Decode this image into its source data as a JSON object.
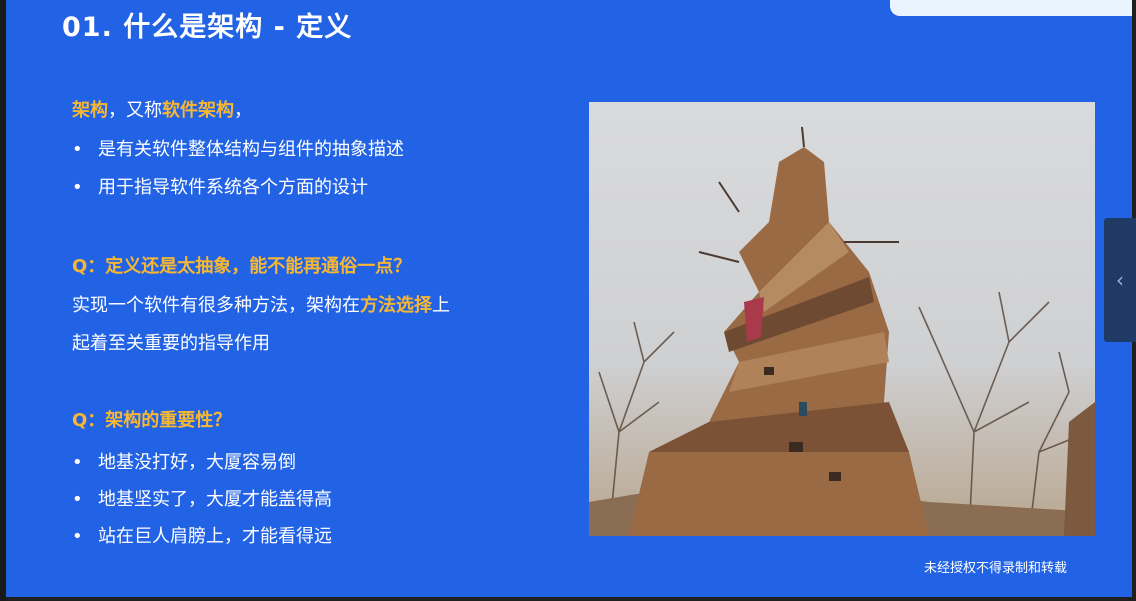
{
  "slide": {
    "title": "01. 什么是架构 - 定义",
    "intro": {
      "term": "架构",
      "sep": "，又称",
      "alias": "软件架构",
      "end": "，"
    },
    "intro_bullets": [
      "是有关软件整体结构与组件的抽象描述",
      "用于指导软件系统各个方面的设计"
    ],
    "q1": "Q：定义还是太抽象，能不能再通俗一点？",
    "answer1": {
      "line1_a": "实现一个软件有很多种方法，架构在",
      "line1_hl": "方法选择",
      "line1_b": "上",
      "line2": "起着至关重要的指导作用"
    },
    "q2": "Q：架构的重要性？",
    "q2_bullets": [
      "地基没打好，大厦容易倒",
      "地基坚实了，大厦才能盖得高",
      "站在巨人肩膀上，才能看得远"
    ],
    "footer": "未经授权不得录制和转载"
  },
  "icons": {
    "side_tab": "chevron-left-icon",
    "bullet": "bullet-dot-icon"
  },
  "colors": {
    "background": "#2263e6",
    "highlight": "#f7b733",
    "text": "#ffffff"
  }
}
